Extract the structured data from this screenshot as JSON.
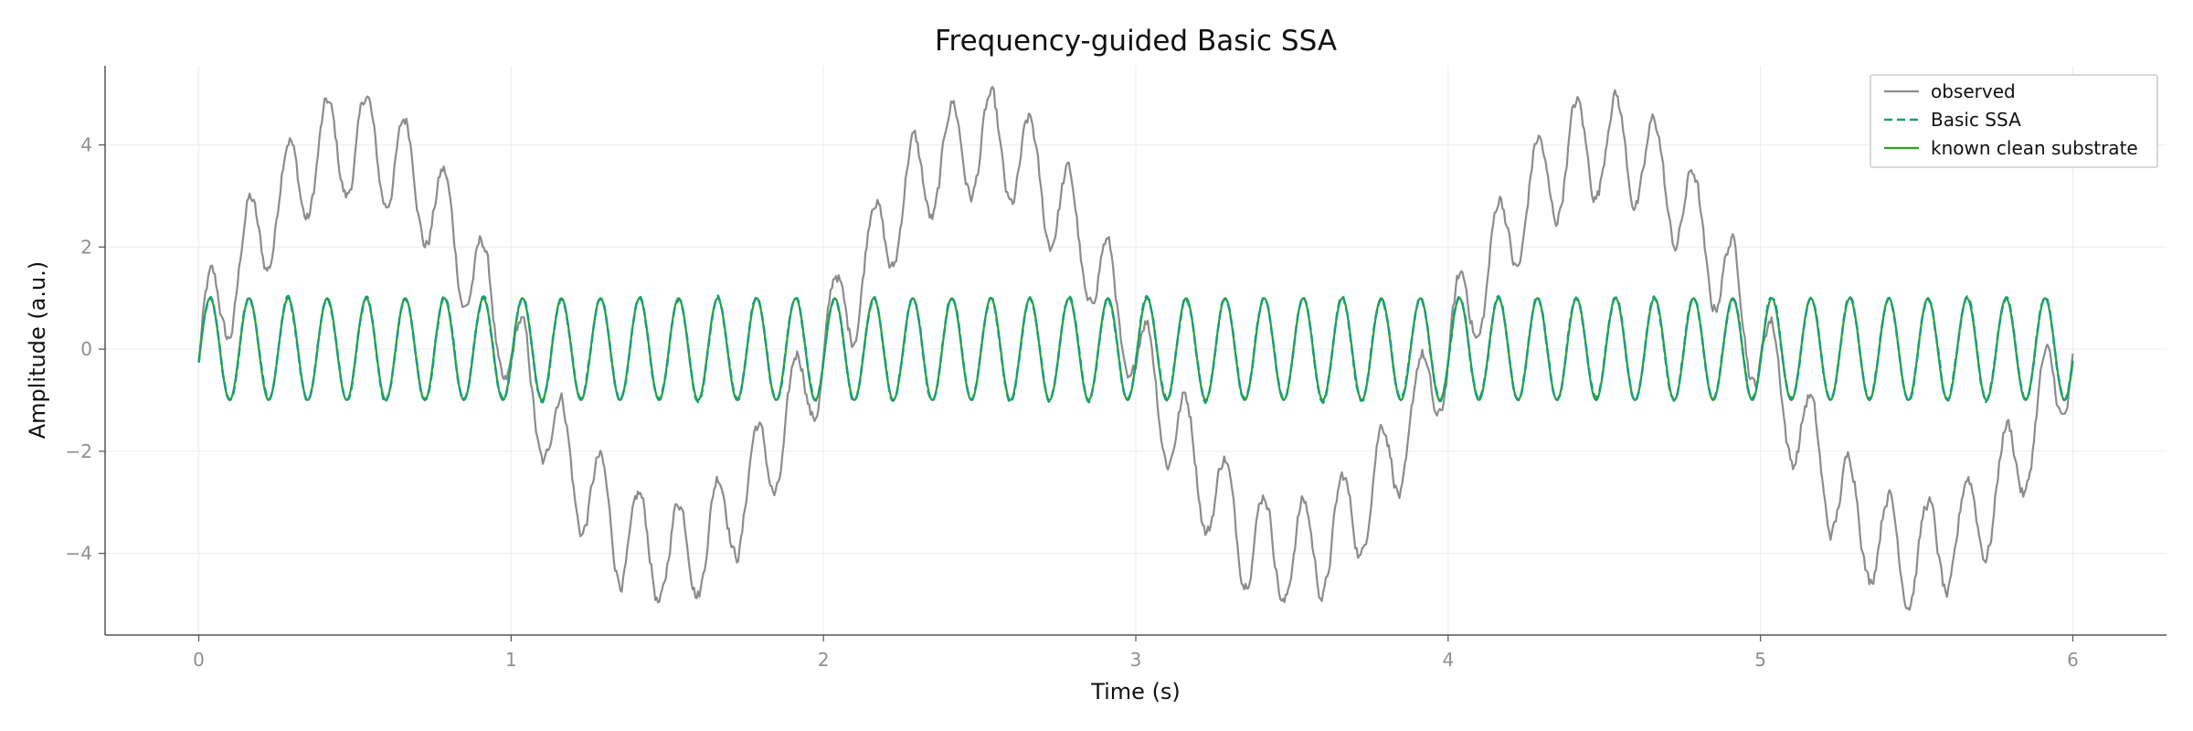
{
  "chart_data": {
    "type": "line",
    "title": "Frequency-guided Basic SSA",
    "xlabel": "Time (s)",
    "ylabel": "Amplitude (a.u.)",
    "xlim": [
      -0.3,
      6.3
    ],
    "ylim": [
      -5.6,
      5.55
    ],
    "x_ticks": [
      0,
      1,
      2,
      3,
      4,
      5,
      6
    ],
    "x_tick_labels": [
      "0",
      "1",
      "2",
      "3",
      "4",
      "5",
      "6"
    ],
    "y_ticks": [
      -4,
      -2,
      0,
      2,
      4
    ],
    "y_tick_labels": [
      "−4",
      "−2",
      "0",
      "2",
      "4"
    ],
    "grid": true,
    "legend_position": "top-right",
    "x_range": [
      0,
      6
    ],
    "series": [
      {
        "name": "observed",
        "color": "#8c8c8c",
        "style": "solid",
        "components": [
          {
            "kind": "sine",
            "amplitude": 4.0,
            "frequency_hz": 0.5,
            "phase_rad": 0.0
          },
          {
            "kind": "sine",
            "amplitude": 1.0,
            "frequency_hz": 8.0,
            "phase_rad": -0.25
          },
          {
            "kind": "noise",
            "amplitude": 0.15
          }
        ]
      },
      {
        "name": "Basic SSA",
        "color": "#17a07a",
        "style": "dashed",
        "components": [
          {
            "kind": "sine",
            "amplitude": 1.0,
            "frequency_hz": 8.0,
            "phase_rad": -0.25
          },
          {
            "kind": "noise",
            "amplitude": 0.04
          }
        ]
      },
      {
        "name": "known clean substrate",
        "color": "#2ca02c",
        "style": "solid",
        "components": [
          {
            "kind": "sine",
            "amplitude": 1.0,
            "frequency_hz": 8.0,
            "phase_rad": -0.25
          }
        ]
      }
    ]
  }
}
